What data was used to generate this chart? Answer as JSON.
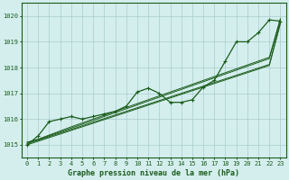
{
  "title": "Graphe pression niveau de la mer (hPa)",
  "background_color": "#d4eeee",
  "grid_color": "#aacccc",
  "line_color": "#1a5c1a",
  "ylim": [
    1014.5,
    1020.5
  ],
  "xlim": [
    -0.5,
    23.5
  ],
  "yticks": [
    1015,
    1016,
    1017,
    1018,
    1019,
    1020
  ],
  "x_labels": [
    "0",
    "1",
    "2",
    "3",
    "4",
    "5",
    "6",
    "7",
    "8",
    "9",
    "10",
    "11",
    "12",
    "13",
    "14",
    "15",
    "16",
    "17",
    "18",
    "19",
    "20",
    "21",
    "22",
    "23"
  ],
  "straight_lines": [
    [
      1015.1,
      1015.2,
      1015.35,
      1015.5,
      1015.65,
      1015.8,
      1015.95,
      1016.1,
      1016.25,
      1016.4,
      1016.55,
      1016.7,
      1016.85,
      1017.0,
      1017.15,
      1017.3,
      1017.45,
      1017.6,
      1017.75,
      1017.9,
      1018.05,
      1018.2,
      1018.35,
      1019.85
    ],
    [
      1015.1,
      1015.22,
      1015.38,
      1015.54,
      1015.7,
      1015.85,
      1016.0,
      1016.15,
      1016.3,
      1016.45,
      1016.6,
      1016.75,
      1016.9,
      1017.05,
      1017.2,
      1017.35,
      1017.5,
      1017.65,
      1017.8,
      1017.95,
      1018.1,
      1018.25,
      1018.4,
      1019.9
    ],
    [
      1015.05,
      1015.18,
      1015.32,
      1015.46,
      1015.6,
      1015.74,
      1015.88,
      1016.02,
      1016.16,
      1016.3,
      1016.44,
      1016.58,
      1016.72,
      1016.86,
      1017.0,
      1017.14,
      1017.28,
      1017.42,
      1017.56,
      1017.7,
      1017.84,
      1017.98,
      1018.12,
      1019.75
    ],
    [
      1015.0,
      1015.14,
      1015.28,
      1015.42,
      1015.56,
      1015.7,
      1015.84,
      1015.98,
      1016.12,
      1016.26,
      1016.4,
      1016.54,
      1016.68,
      1016.82,
      1016.96,
      1017.1,
      1017.24,
      1017.38,
      1017.52,
      1017.66,
      1017.8,
      1017.94,
      1018.08,
      1019.7
    ]
  ],
  "marker_line": [
    1015.0,
    1015.35,
    1015.9,
    1016.0,
    1016.1,
    1016.0,
    1016.1,
    1016.2,
    1016.3,
    1016.5,
    1017.05,
    1017.2,
    1017.0,
    1016.65,
    1016.65,
    1016.75,
    1017.25,
    1017.5,
    1018.25,
    1019.0,
    1019.0,
    1019.35,
    1019.85,
    1019.8
  ]
}
